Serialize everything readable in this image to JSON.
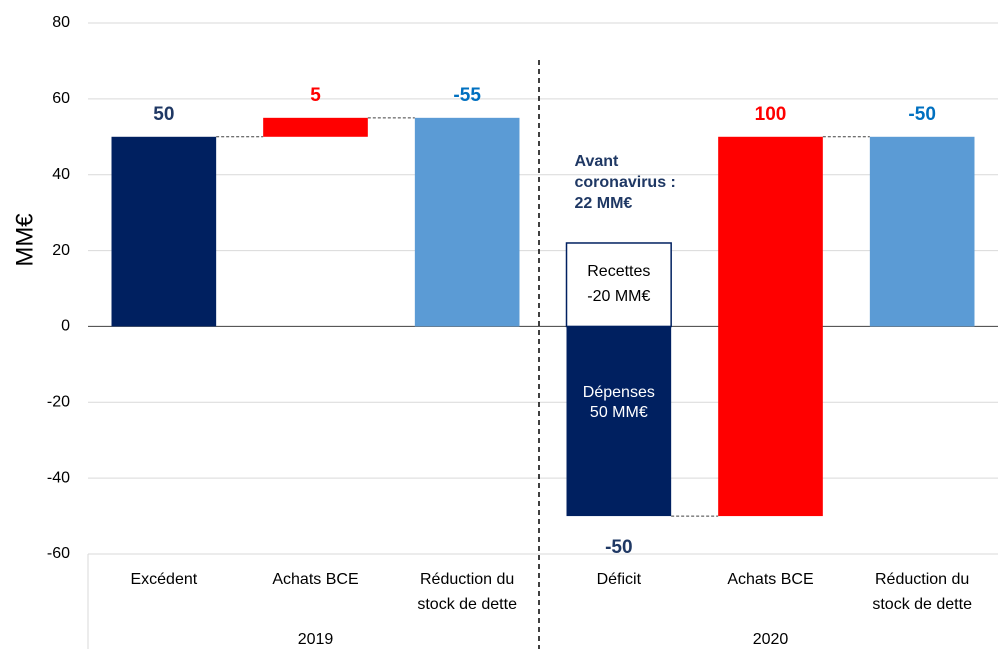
{
  "chart_data": {
    "type": "waterfall",
    "y_label": "MM€",
    "categories": [
      "Excédent",
      "Achats BCE",
      "Réduction du stock de dette",
      "Déficit",
      "Achats BCE",
      "Réduction du stock de dette"
    ],
    "groups": [
      "2019",
      "2020"
    ],
    "values": [
      50,
      5,
      -55,
      -50,
      100,
      -50
    ],
    "colors": [
      "#002060",
      "#ff0000",
      "#5b9bd5",
      "#002060",
      "#ff0000",
      "#5b9bd5"
    ],
    "label_colors": [
      "#1f3864",
      "#ff0000",
      "#0070c0",
      "#1f3864",
      "#ff0000",
      "#0070c0"
    ],
    "ylim": [
      -60,
      80
    ],
    "yticks": [
      -60,
      -40,
      -20,
      0,
      20,
      40,
      60,
      80
    ],
    "grid": true,
    "pre_covid_level": 22,
    "annotations": {
      "pre_covid": [
        "Avant",
        "coronavirus :",
        "22 MM€"
      ],
      "revenue": [
        "Recettes",
        "-20 MM€"
      ],
      "spending": [
        "Dépenses",
        "50 MM€"
      ]
    }
  }
}
